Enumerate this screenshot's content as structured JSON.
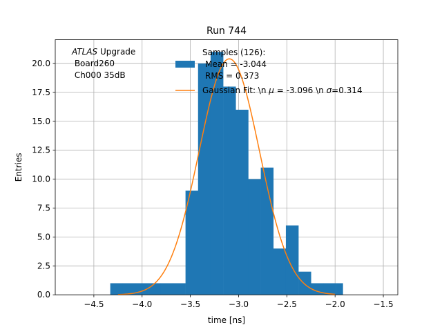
{
  "chart_data": {
    "type": "bar",
    "title": "Run 744",
    "xlabel": "time [ns]",
    "ylabel": "Entries",
    "xlim": [
      -4.9,
      -1.35
    ],
    "ylim": [
      0,
      22.05
    ],
    "grid": true,
    "xticks": [
      -4.5,
      -4.0,
      -3.5,
      -3.0,
      -2.5,
      -2.0,
      -1.5
    ],
    "xtick_labels": [
      "−4.5",
      "−4.0",
      "−3.5",
      "−3.0",
      "−2.5",
      "−2.0",
      "−1.5"
    ],
    "yticks": [
      0.0,
      2.5,
      5.0,
      7.5,
      10.0,
      12.5,
      15.0,
      17.5,
      20.0
    ],
    "ytick_labels": [
      "0.0",
      "2.5",
      "5.0",
      "7.5",
      "10.0",
      "12.5",
      "15.0",
      "17.5",
      "20.0"
    ],
    "histogram": {
      "name": "Samples (126):\n Mean = -3.044\n RMS = 0.373",
      "bin_edges": [
        -4.33,
        -4.2,
        -4.07,
        -3.94,
        -3.81,
        -3.68,
        -3.55,
        -3.42,
        -3.29,
        -3.16,
        -3.03,
        -2.9,
        -2.77,
        -2.64,
        -2.51,
        -2.38,
        -2.25,
        -2.12,
        -1.99,
        -1.92
      ],
      "counts": [
        1,
        1,
        1,
        1,
        1,
        1,
        9,
        20,
        21,
        18,
        16,
        10,
        11,
        4,
        6,
        2,
        1,
        1,
        1
      ],
      "color": "#1f77b4"
    },
    "fit": {
      "name": "Gaussian Fit: \\n μ = -3.096 \\n σ=0.314",
      "amplitude": 20.4,
      "mu": -3.096,
      "sigma": 0.314,
      "x_range": [
        -4.25,
        -2.0
      ],
      "color": "#ff7f0e"
    },
    "legend": {
      "location": "top-center",
      "samples_lines": [
        "Samples (126):",
        "Mean = -3.044",
        "RMS = 0.373"
      ],
      "fit_prefix": "Gaussian Fit: \\n ",
      "fit_mu_symbol": "μ",
      "fit_mu_value": " = -3.096 \\n ",
      "fit_sigma_symbol": "σ",
      "fit_sigma_value": "=0.314"
    },
    "annotation": {
      "atlas": "ATLAS",
      "upgrade": " Upgrade",
      "line2": " Board260",
      "line3": " Ch000 35dB"
    }
  }
}
